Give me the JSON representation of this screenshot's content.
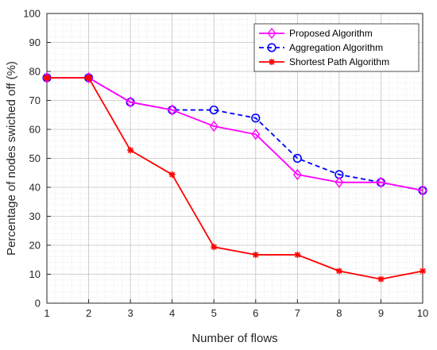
{
  "chart_data": {
    "type": "line",
    "title": "",
    "xlabel": "Number of flows",
    "ylabel": "Percentage of nodes swiched off (%)",
    "x": [
      1,
      2,
      3,
      4,
      5,
      6,
      7,
      8,
      9,
      10
    ],
    "xlim": [
      1,
      10
    ],
    "ylim": [
      0,
      100
    ],
    "xticks": [
      1,
      2,
      3,
      4,
      5,
      6,
      7,
      8,
      9,
      10
    ],
    "yticks": [
      0,
      10,
      20,
      30,
      40,
      50,
      60,
      70,
      80,
      90,
      100
    ],
    "grid": "major and minor",
    "legend_position": "top-right",
    "series": [
      {
        "name": "Proposed Algorithm",
        "values": [
          77.8,
          77.8,
          69.4,
          66.7,
          61.1,
          58.3,
          44.4,
          41.7,
          41.7,
          38.9
        ],
        "color": "#ff00ff",
        "line_style": "solid",
        "marker": "diamond"
      },
      {
        "name": "Aggregation Algorithm",
        "values": [
          77.8,
          77.8,
          69.4,
          66.7,
          66.7,
          63.9,
          50.0,
          44.4,
          41.7,
          38.9
        ],
        "color": "#0000ff",
        "line_style": "dashed",
        "marker": "circle"
      },
      {
        "name": "Shortest Path Algorithm",
        "values": [
          77.8,
          77.8,
          52.8,
          44.4,
          19.4,
          16.7,
          16.7,
          11.1,
          8.3,
          11.1
        ],
        "color": "#ff0000",
        "line_style": "solid",
        "marker": "asterisk"
      }
    ]
  }
}
